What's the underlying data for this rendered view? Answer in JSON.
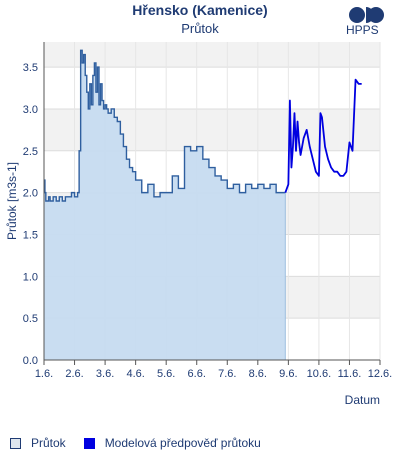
{
  "header": {
    "title": "Hřensko (Kamenice)",
    "subtitle": "Průtok",
    "logo_text": "HPPS"
  },
  "legend": {
    "flow_label": "Průtok",
    "model_label": "Modelová předpověď průtoku"
  },
  "colors": {
    "flow_fill": "#c6dbf0",
    "flow_line": "#2f5f9f",
    "model_line": "#0000e0",
    "axis_text": "#1f3b73",
    "band": "#f2f2f2"
  },
  "chart_data": {
    "type": "area",
    "title": "Průtok",
    "xlabel": "Datum",
    "ylabel": "Průtok [m3s-1]",
    "xlim": [
      1,
      12
    ],
    "ylim": [
      0,
      3.8
    ],
    "x_ticks": [
      1,
      2,
      3,
      4,
      5,
      6,
      7,
      8,
      9,
      10,
      11,
      12
    ],
    "x_tick_labels": [
      "1.6.",
      "2.6.",
      "3.6.",
      "4.6.",
      "5.6.",
      "6.6.",
      "7.6.",
      "8.6.",
      "9.6.",
      "10.6.",
      "11.6.",
      "12.6."
    ],
    "y_ticks": [
      0.0,
      0.5,
      1.0,
      1.5,
      2.0,
      2.5,
      3.0,
      3.5
    ],
    "y_tick_labels": [
      "0.0",
      "0.5",
      "1.0",
      "1.5",
      "2.0",
      "2.5",
      "3.0",
      "3.5"
    ],
    "grid": true,
    "legend_position": "bottom",
    "series": [
      {
        "name": "Průtok",
        "style": "area",
        "x": [
          1.0,
          1.03,
          1.06,
          1.1,
          1.15,
          1.2,
          1.3,
          1.4,
          1.5,
          1.6,
          1.7,
          1.8,
          1.9,
          2.0,
          2.1,
          2.15,
          2.2,
          2.25,
          2.3,
          2.35,
          2.4,
          2.45,
          2.5,
          2.55,
          2.6,
          2.65,
          2.7,
          2.75,
          2.8,
          2.85,
          2.9,
          2.95,
          3.0,
          3.05,
          3.1,
          3.2,
          3.3,
          3.4,
          3.5,
          3.6,
          3.7,
          3.8,
          3.9,
          4.0,
          4.2,
          4.4,
          4.6,
          4.8,
          5.0,
          5.2,
          5.4,
          5.6,
          5.8,
          6.0,
          6.2,
          6.4,
          6.6,
          6.8,
          7.0,
          7.2,
          7.4,
          7.6,
          7.8,
          8.0,
          8.2,
          8.4,
          8.6,
          8.8,
          8.9
        ],
        "y": [
          2.15,
          2.0,
          1.9,
          1.9,
          1.95,
          1.9,
          1.95,
          1.9,
          1.95,
          1.9,
          1.95,
          1.95,
          2.0,
          1.95,
          2.0,
          2.5,
          3.7,
          3.55,
          3.65,
          3.4,
          3.2,
          3.0,
          3.3,
          3.05,
          3.4,
          3.55,
          3.2,
          3.5,
          3.05,
          3.3,
          3.1,
          3.0,
          3.05,
          3.0,
          2.95,
          3.0,
          2.9,
          2.85,
          2.7,
          2.55,
          2.4,
          2.3,
          2.25,
          2.15,
          2.0,
          2.1,
          1.95,
          2.0,
          2.0,
          2.2,
          2.05,
          2.55,
          2.5,
          2.55,
          2.4,
          2.3,
          2.2,
          2.15,
          2.05,
          2.1,
          2.0,
          2.1,
          2.05,
          2.1,
          2.05,
          2.1,
          2.0,
          2.0,
          2.0
        ]
      },
      {
        "name": "Modelová předpověď průtoku",
        "style": "line",
        "x": [
          8.9,
          9.0,
          9.05,
          9.1,
          9.15,
          9.2,
          9.25,
          9.3,
          9.35,
          9.4,
          9.45,
          9.5,
          9.6,
          9.7,
          9.8,
          9.9,
          10.0,
          10.05,
          10.1,
          10.2,
          10.3,
          10.4,
          10.5,
          10.6,
          10.7,
          10.8,
          10.9,
          11.0,
          11.1,
          11.2,
          11.3,
          11.35,
          11.4
        ],
        "y": [
          2.0,
          2.1,
          3.1,
          2.3,
          2.55,
          2.95,
          2.5,
          2.85,
          2.6,
          2.45,
          2.55,
          2.65,
          2.75,
          2.55,
          2.4,
          2.25,
          2.2,
          2.95,
          2.9,
          2.55,
          2.4,
          2.3,
          2.25,
          2.25,
          2.2,
          2.2,
          2.25,
          2.6,
          2.5,
          3.35,
          3.3,
          3.3,
          3.3
        ]
      }
    ]
  }
}
